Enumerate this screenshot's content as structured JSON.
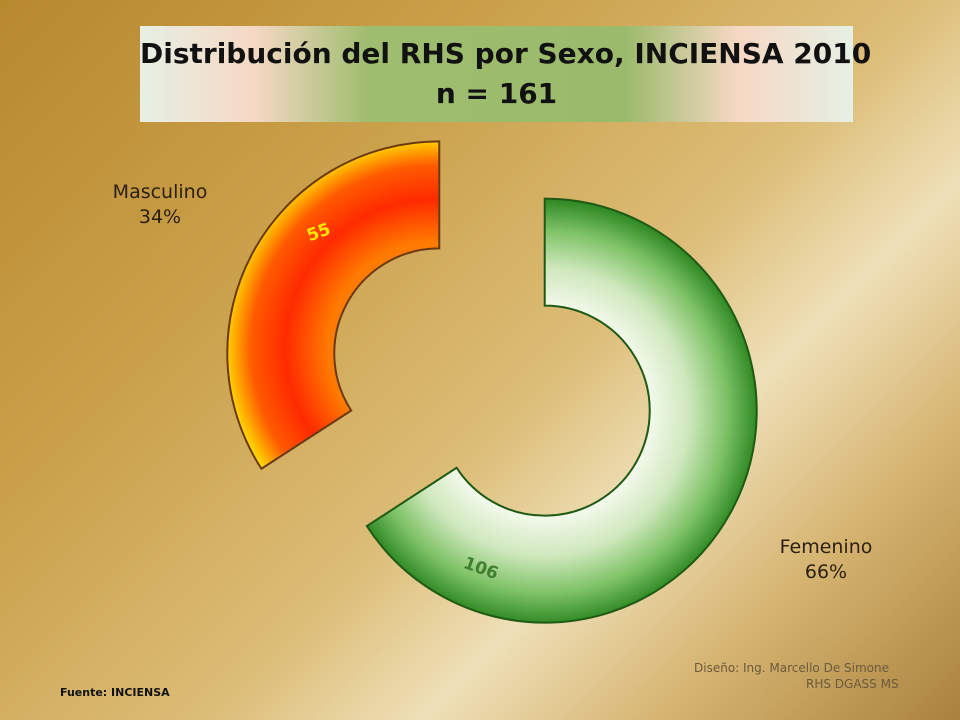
{
  "chart_data": {
    "type": "pie",
    "style": "doughnut-exploded",
    "title": "Distribución del RHS por Sexo, INCIENSA 2010",
    "subtitle": "n = 161",
    "categories": [
      "Masculino",
      "Femenino"
    ],
    "values": [
      55,
      106
    ],
    "percents": [
      "34%",
      "66%"
    ],
    "colors": [
      "#ff6a00",
      "#3f9a2e"
    ],
    "data_labels": [
      "55",
      "106"
    ]
  },
  "footer": {
    "source": "Fuente:  INCIENSA",
    "design_line1": "Diseño: Ing. Marcello De Simone",
    "design_line2": "RHS DGASS MS"
  }
}
